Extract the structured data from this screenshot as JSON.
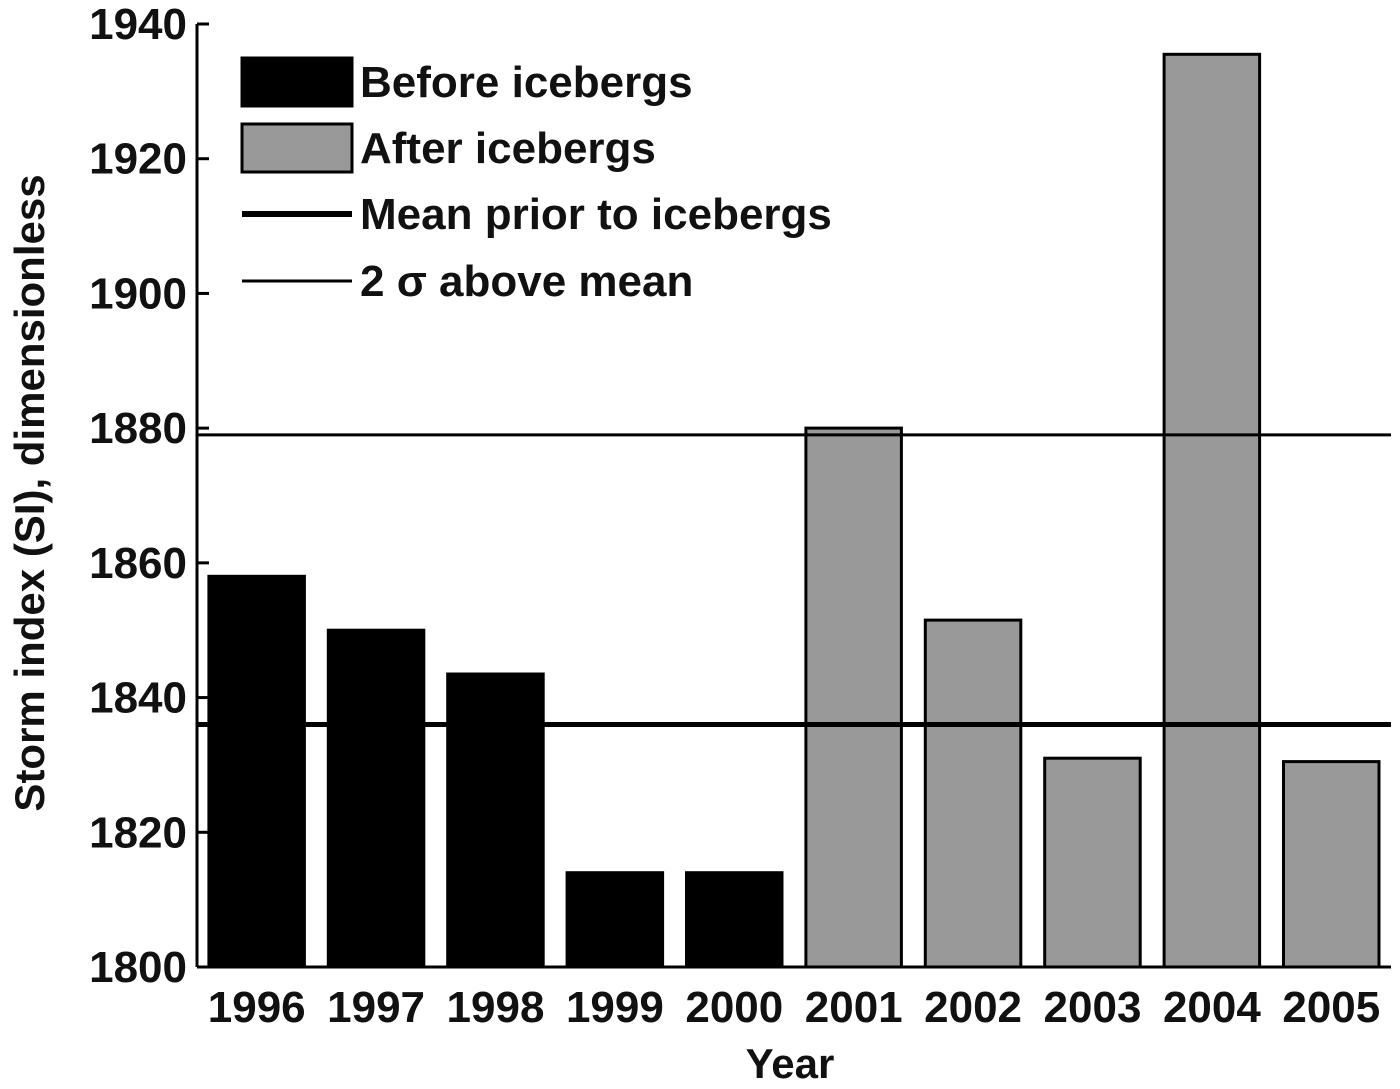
{
  "chart_data": {
    "type": "bar",
    "categories": [
      "1996",
      "1997",
      "1998",
      "1999",
      "2000",
      "2001",
      "2002",
      "2003",
      "2004",
      "2005"
    ],
    "series": [
      {
        "name": "Before icebergs",
        "color": "#000000",
        "values": [
          1858,
          1850,
          1843.5,
          1814,
          1814,
          null,
          null,
          null,
          null,
          null
        ]
      },
      {
        "name": "After icebergs",
        "color": "#999999",
        "values": [
          null,
          null,
          null,
          null,
          null,
          1880,
          1851.5,
          1831,
          1935.5,
          1830.5
        ]
      }
    ],
    "reference_lines": [
      {
        "name": "Mean prior to icebergs",
        "value": 1836,
        "style": "thick"
      },
      {
        "name": "2 σ above mean",
        "value": 1879,
        "style": "thin"
      }
    ],
    "title": "",
    "xlabel": "Year",
    "ylabel": "Storm index (SI), dimensionless",
    "ylim": [
      1800,
      1940
    ],
    "yticks": [
      1800,
      1820,
      1840,
      1860,
      1880,
      1900,
      1920,
      1940
    ],
    "legend": {
      "position": "top-left",
      "entries": [
        {
          "label": "Before icebergs",
          "kind": "bar",
          "color": "#000000"
        },
        {
          "label": "After icebergs",
          "kind": "bar",
          "color": "#999999"
        },
        {
          "label": "Mean prior to icebergs",
          "kind": "line-thick"
        },
        {
          "label": "2 σ above mean",
          "kind": "line-thin"
        }
      ]
    },
    "grid": false
  }
}
